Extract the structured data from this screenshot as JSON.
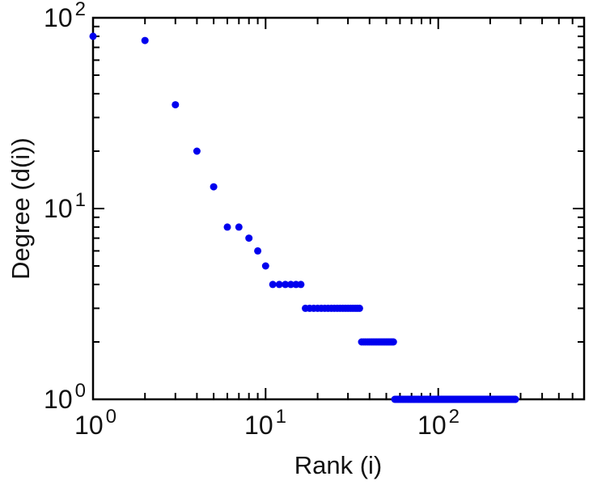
{
  "chart_data": {
    "type": "scatter",
    "title": "",
    "xlabel": "Rank (i)",
    "ylabel": "Degree (d(i))",
    "x_scale": "log",
    "y_scale": "log",
    "xlim": [
      1,
      700
    ],
    "ylim": [
      1,
      100
    ],
    "x_major_ticks": [
      1,
      10,
      100
    ],
    "y_major_ticks": [
      1,
      10,
      100
    ],
    "tick_base": "10",
    "x_tick_exponents": [
      "0",
      "1",
      "2"
    ],
    "y_tick_exponents": [
      "0",
      "1",
      "2"
    ],
    "grid": false,
    "legend": false,
    "marker": {
      "shape": "circle",
      "color": "#0000ee",
      "radius_px": 4.5
    },
    "series": [
      {
        "name": "degree-vs-rank",
        "points": [
          [
            1,
            80
          ],
          [
            2,
            76
          ],
          [
            3,
            35
          ],
          [
            4,
            20
          ],
          [
            5,
            13
          ],
          [
            6,
            8
          ],
          [
            7,
            8
          ],
          [
            8,
            7
          ],
          [
            9,
            6
          ],
          [
            10,
            5
          ]
        ],
        "runs": [
          {
            "degree": 4,
            "rank_start": 11,
            "rank_end": 16
          },
          {
            "degree": 3,
            "rank_start": 17,
            "rank_end": 35
          },
          {
            "degree": 2,
            "rank_start": 36,
            "rank_end": 55
          },
          {
            "degree": 1,
            "rank_start": 56,
            "rank_end": 280
          }
        ]
      }
    ]
  }
}
